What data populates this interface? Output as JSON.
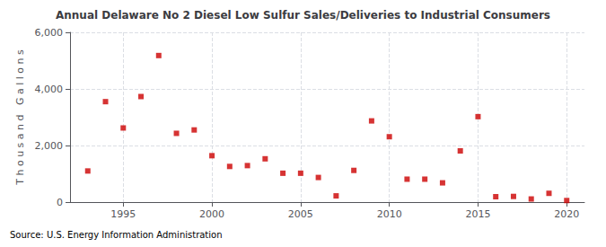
{
  "chart_data": {
    "type": "scatter",
    "title": "Annual Delaware No 2 Diesel Low Sulfur Sales/Deliveries to Industrial Consumers",
    "ylabel": "T h o u s a n d   G a l l o n s",
    "annotation": "Source: U.S. Energy Information Administration",
    "x": [
      1993,
      1994,
      1995,
      1996,
      1997,
      1998,
      1999,
      2000,
      2001,
      2002,
      2003,
      2004,
      2005,
      2006,
      2007,
      2008,
      2009,
      2010,
      2011,
      2012,
      2013,
      2014,
      2015,
      2016,
      2017,
      2018,
      2019,
      2020
    ],
    "values": [
      1100,
      3550,
      2620,
      3730,
      5180,
      2430,
      2550,
      1640,
      1260,
      1290,
      1530,
      1020,
      1020,
      870,
      220,
      1120,
      2870,
      2310,
      810,
      810,
      680,
      1810,
      3020,
      190,
      200,
      110,
      310,
      55
    ],
    "color": "#cc0000",
    "marker": "square",
    "xlim": [
      1992,
      2021
    ],
    "xticks": [
      1995,
      2000,
      2005,
      2010,
      2015,
      2020
    ],
    "ylim": [
      0,
      6000
    ],
    "yticks": [
      {
        "value": 0,
        "label": "0"
      },
      {
        "value": 2000,
        "label": "2,000"
      },
      {
        "value": 4000,
        "label": "4,000"
      },
      {
        "value": 6000,
        "label": "6,000"
      }
    ],
    "grid": true
  }
}
